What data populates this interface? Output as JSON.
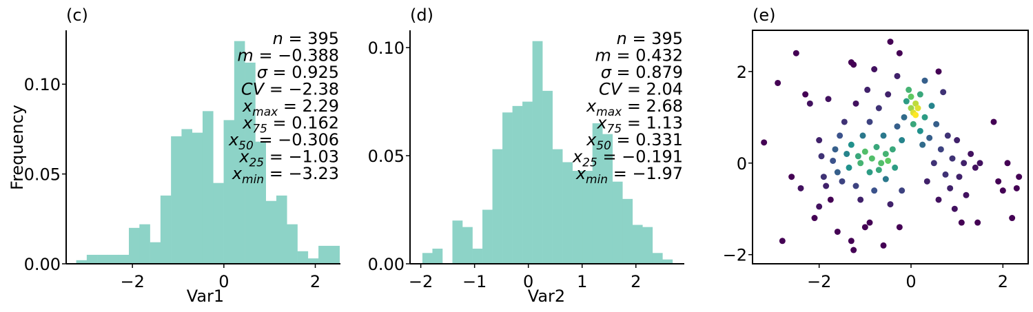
{
  "chart_data": [
    {
      "type": "bar",
      "panel_label": "(c)",
      "xlabel": "Var1",
      "ylabel": "Frequency",
      "xlim": [
        -3.45,
        2.55
      ],
      "ylim": [
        0,
        0.13
      ],
      "xticks": [
        -2,
        0,
        2
      ],
      "yticks": [
        0.0,
        0.05,
        0.1
      ],
      "ytick_labels": [
        "0.00",
        "0.05",
        "0.10"
      ],
      "xtick_labels": [
        "−2",
        "0",
        "2"
      ],
      "bar_color": "#8dd3c7",
      "bin_start": -3.23,
      "bin_width": 0.2304,
      "values": [
        0.002,
        0.005,
        0.005,
        0.005,
        0.005,
        0.02,
        0.022,
        0.012,
        0.038,
        0.071,
        0.075,
        0.073,
        0.085,
        0.045,
        0.08,
        0.124,
        0.112,
        0.068,
        0.035,
        0.038,
        0.022,
        0.007,
        0.003,
        0.01,
        0.01
      ],
      "stats": [
        "n = 395",
        "m = −0.388",
        "σ = 0.925",
        "CV = −2.38",
        "x_max = 2.29",
        "x_75 = 0.162",
        "x_50 = −0.306",
        "x_25 = −1.03",
        "x_min = −3.23"
      ]
    },
    {
      "type": "bar",
      "panel_label": "(d)",
      "xlabel": "Var2",
      "ylabel": "",
      "xlim": [
        -2.2,
        2.9
      ],
      "ylim": [
        0,
        0.108
      ],
      "xticks": [
        -2,
        -1,
        0,
        1,
        2
      ],
      "yticks": [
        0.0,
        0.05,
        0.1
      ],
      "ytick_labels": [
        "0.00",
        "0.05",
        "0.10"
      ],
      "xtick_labels": [
        "−2",
        "−1",
        "0",
        "1",
        "2"
      ],
      "bar_color": "#8dd3c7",
      "bin_start": -1.97,
      "bin_width": 0.186,
      "values": [
        0.005,
        0.007,
        0.0,
        0.02,
        0.017,
        0.007,
        0.025,
        0.053,
        0.07,
        0.073,
        0.075,
        0.103,
        0.08,
        0.053,
        0.047,
        0.043,
        0.043,
        0.065,
        0.06,
        0.038,
        0.03,
        0.018,
        0.017,
        0.005,
        0.002
      ],
      "stats": [
        "n = 395",
        "m = 0.432",
        "σ = 0.879",
        "CV = 2.04",
        "x_max = 2.68",
        "x_75 = 1.13",
        "x_50 = 0.331",
        "x_25 = −0.191",
        "x_min = −1.97"
      ]
    },
    {
      "type": "scatter",
      "panel_label": "(e)",
      "xlabel": "",
      "ylabel": "",
      "xlim": [
        -3.45,
        2.55
      ],
      "ylim": [
        -2.2,
        2.9
      ],
      "xticks": [
        -2,
        0,
        2
      ],
      "yticks": [
        -2,
        0,
        2
      ],
      "xtick_labels": [
        "−2",
        "0",
        "2"
      ],
      "ytick_labels": [
        "−2",
        "0",
        "2"
      ],
      "colormap": "viridis",
      "points": [
        [
          -3.2,
          0.45,
          0.0
        ],
        [
          -2.9,
          1.75,
          0.0
        ],
        [
          -2.8,
          -1.7,
          0.0
        ],
        [
          -2.6,
          -0.3,
          0.0
        ],
        [
          -2.5,
          2.4,
          0.0
        ],
        [
          -2.4,
          -0.55,
          0.05
        ],
        [
          -2.3,
          1.5,
          0.0
        ],
        [
          -2.2,
          1.3,
          0.05
        ],
        [
          -2.1,
          -1.2,
          0.0
        ],
        [
          -2.0,
          -0.95,
          0.05
        ],
        [
          -2.0,
          0.5,
          0.1
        ],
        [
          -1.95,
          0.15,
          0.15
        ],
        [
          -1.9,
          -0.3,
          0.15
        ],
        [
          -1.85,
          -0.5,
          0.1
        ],
        [
          -1.8,
          1.4,
          0.05
        ],
        [
          -1.75,
          -0.8,
          0.0
        ],
        [
          -1.7,
          0.05,
          0.25
        ],
        [
          -1.65,
          0.3,
          0.3
        ],
        [
          -1.6,
          -0.2,
          0.3
        ],
        [
          -1.55,
          0.6,
          0.25
        ],
        [
          -1.5,
          -0.4,
          0.2
        ],
        [
          -1.45,
          0.9,
          0.15
        ],
        [
          -1.4,
          0.2,
          0.45
        ],
        [
          -1.35,
          -0.1,
          0.5
        ],
        [
          -1.3,
          0.4,
          0.5
        ],
        [
          -1.3,
          2.2,
          0.0
        ],
        [
          -1.25,
          2.15,
          0.0
        ],
        [
          -1.2,
          -0.5,
          0.2
        ],
        [
          -1.2,
          1.3,
          0.05
        ],
        [
          -1.15,
          0.15,
          0.6
        ],
        [
          -1.1,
          -0.8,
          0.1
        ],
        [
          -1.1,
          0.0,
          0.65
        ],
        [
          -1.05,
          0.6,
          0.4
        ],
        [
          -1.0,
          -1.4,
          0.0
        ],
        [
          -1.0,
          0.25,
          0.7
        ],
        [
          -0.95,
          1.6,
          0.1
        ],
        [
          -0.9,
          -0.2,
          0.55
        ],
        [
          -0.9,
          0.9,
          0.2
        ],
        [
          -0.85,
          0.1,
          0.7
        ],
        [
          -0.8,
          -0.6,
          0.25
        ],
        [
          -0.8,
          2.05,
          0.05
        ],
        [
          -0.75,
          0.35,
          0.6
        ],
        [
          -0.7,
          -0.15,
          0.6
        ],
        [
          -0.7,
          1.2,
          0.15
        ],
        [
          -0.65,
          0.0,
          0.7
        ],
        [
          -0.6,
          -1.8,
          0.0
        ],
        [
          -0.6,
          0.6,
          0.4
        ],
        [
          -0.55,
          -0.35,
          0.4
        ],
        [
          -0.55,
          0.2,
          0.65
        ],
        [
          -0.5,
          0.05,
          0.75
        ],
        [
          -0.5,
          1.5,
          0.1
        ],
        [
          -0.45,
          -0.9,
          0.1
        ],
        [
          -0.45,
          2.65,
          0.0
        ],
        [
          -0.4,
          0.3,
          0.6
        ],
        [
          -0.35,
          -0.1,
          0.55
        ],
        [
          -0.3,
          0.8,
          0.3
        ],
        [
          -0.3,
          1.9,
          0.1
        ],
        [
          -0.25,
          2.4,
          0.0
        ],
        [
          -0.2,
          0.5,
          0.45
        ],
        [
          -0.2,
          -0.6,
          0.2
        ],
        [
          -0.15,
          1.0,
          0.35
        ],
        [
          -0.1,
          1.35,
          0.55
        ],
        [
          -0.05,
          1.6,
          0.65
        ],
        [
          0.0,
          1.2,
          0.85
        ],
        [
          0.0,
          1.45,
          0.75
        ],
        [
          0.05,
          1.1,
          0.95
        ],
        [
          0.05,
          0.85,
          0.6
        ],
        [
          0.1,
          1.3,
          0.9
        ],
        [
          0.1,
          1.05,
          1.0
        ],
        [
          0.15,
          1.2,
          0.95
        ],
        [
          0.2,
          0.7,
          0.5
        ],
        [
          0.2,
          1.5,
          0.6
        ],
        [
          0.25,
          0.4,
          0.35
        ],
        [
          0.3,
          1.0,
          0.55
        ],
        [
          0.3,
          1.8,
          0.3
        ],
        [
          0.35,
          -0.4,
          0.1
        ],
        [
          0.4,
          0.55,
          0.3
        ],
        [
          0.45,
          1.25,
          0.45
        ],
        [
          0.5,
          0.0,
          0.15
        ],
        [
          0.55,
          0.85,
          0.3
        ],
        [
          0.6,
          -0.8,
          0.05
        ],
        [
          0.65,
          0.3,
          0.2
        ],
        [
          0.7,
          1.55,
          0.15
        ],
        [
          0.75,
          -0.25,
          0.15
        ],
        [
          0.8,
          0.6,
          0.15
        ],
        [
          0.85,
          -0.55,
          0.1
        ],
        [
          0.9,
          0.1,
          0.15
        ],
        [
          0.95,
          -1.0,
          0.05
        ],
        [
          1.0,
          0.5,
          0.1
        ],
        [
          1.05,
          -0.3,
          0.1
        ],
        [
          1.1,
          -1.3,
          0.0
        ],
        [
          1.15,
          0.0,
          0.1
        ],
        [
          1.2,
          -0.7,
          0.05
        ],
        [
          1.3,
          0.2,
          0.05
        ],
        [
          1.4,
          -0.1,
          0.05
        ],
        [
          1.45,
          -1.3,
          0.0
        ],
        [
          1.5,
          0.0,
          0.05
        ],
        [
          1.8,
          0.9,
          0.0
        ],
        [
          1.9,
          -0.4,
          0.0
        ],
        [
          2.0,
          -0.6,
          0.0
        ],
        [
          2.1,
          0.0,
          0.0
        ],
        [
          2.2,
          -1.2,
          0.0
        ],
        [
          2.3,
          -0.55,
          0.0
        ],
        [
          2.35,
          -0.3,
          0.0
        ],
        [
          -1.6,
          -1.5,
          0.0
        ],
        [
          -0.9,
          -1.3,
          0.0
        ],
        [
          -1.25,
          -1.9,
          0.0
        ],
        [
          -1.3,
          -1.7,
          0.0
        ],
        [
          -0.25,
          -1.4,
          0.0
        ],
        [
          0.6,
          2.0,
          0.0
        ]
      ]
    }
  ]
}
